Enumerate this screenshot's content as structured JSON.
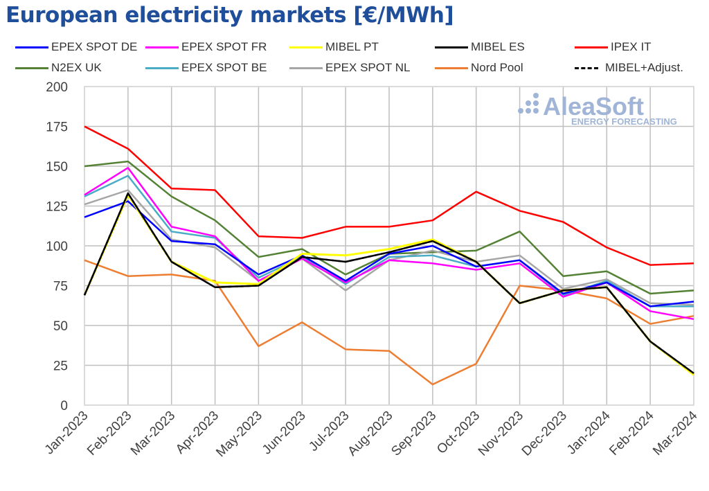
{
  "chart_data": {
    "type": "line",
    "title": "European electricity markets [€/MWh]",
    "xlabel": "",
    "ylabel": "",
    "ylim": [
      0,
      200
    ],
    "yticks": [
      0,
      25,
      50,
      75,
      100,
      125,
      150,
      175,
      200
    ],
    "grid": true,
    "legend_position": "top",
    "categories": [
      "Jan-2023",
      "Feb-2023",
      "Mar-2023",
      "Apr-2023",
      "May-2023",
      "Jun-2023",
      "Jul-2023",
      "Aug-2023",
      "Sep-2023",
      "Oct-2023",
      "Nov-2023",
      "Dec-2023",
      "Jan-2024",
      "Feb-2024",
      "Mar-2024"
    ],
    "series": [
      {
        "name": "EPEX SPOT DE",
        "color": "#0000ff",
        "values": [
          118,
          128,
          103,
          101,
          82,
          94,
          78,
          95,
          100,
          87,
          91,
          70,
          77,
          62,
          65
        ]
      },
      {
        "name": "EPEX SPOT FR",
        "color": "#ff00ff",
        "values": [
          132,
          149,
          112,
          106,
          78,
          92,
          77,
          91,
          89,
          85,
          89,
          68,
          77,
          59,
          54
        ]
      },
      {
        "name": "MIBEL PT",
        "color": "#ffff00",
        "values": [
          69,
          132,
          90,
          77,
          76,
          95,
          94,
          98,
          104,
          90,
          64,
          72,
          74,
          40,
          19
        ]
      },
      {
        "name": "MIBEL ES",
        "color": "#000000",
        "values": [
          69,
          133,
          90,
          74,
          75,
          93,
          90,
          96,
          103,
          90,
          64,
          72,
          74,
          40,
          20
        ]
      },
      {
        "name": "IPEX IT",
        "color": "#ff0000",
        "values": [
          175,
          161,
          136,
          135,
          106,
          105,
          112,
          112,
          116,
          134,
          122,
          115,
          99,
          88,
          89
        ]
      },
      {
        "name": "N2EX UK",
        "color": "#548235",
        "values": [
          150,
          153,
          131,
          116,
          93,
          98,
          82,
          95,
          96,
          97,
          109,
          81,
          84,
          70,
          72
        ]
      },
      {
        "name": "EPEX SPOT BE",
        "color": "#4bacc6",
        "values": [
          131,
          144,
          109,
          105,
          80,
          93,
          76,
          93,
          94,
          87,
          91,
          69,
          78,
          62,
          62
        ]
      },
      {
        "name": "EPEX SPOT NL",
        "color": "#a6a6a6",
        "values": [
          126,
          135,
          104,
          99,
          78,
          92,
          72,
          91,
          97,
          90,
          94,
          73,
          79,
          64,
          63
        ]
      },
      {
        "name": "Nord Pool",
        "color": "#ed7d31",
        "values": [
          91,
          81,
          82,
          78,
          37,
          52,
          35,
          34,
          13,
          26,
          75,
          72,
          67,
          51,
          56
        ]
      },
      {
        "name": "MIBEL+Adjust.",
        "color": "#000000",
        "dashed": true,
        "values": [
          69,
          133,
          90,
          74,
          75,
          93,
          90,
          96,
          103,
          90,
          64,
          72,
          74,
          40,
          20
        ]
      }
    ]
  },
  "watermark": {
    "brand": "AleaSoft",
    "tagline": "ENERGY FORECASTING"
  }
}
